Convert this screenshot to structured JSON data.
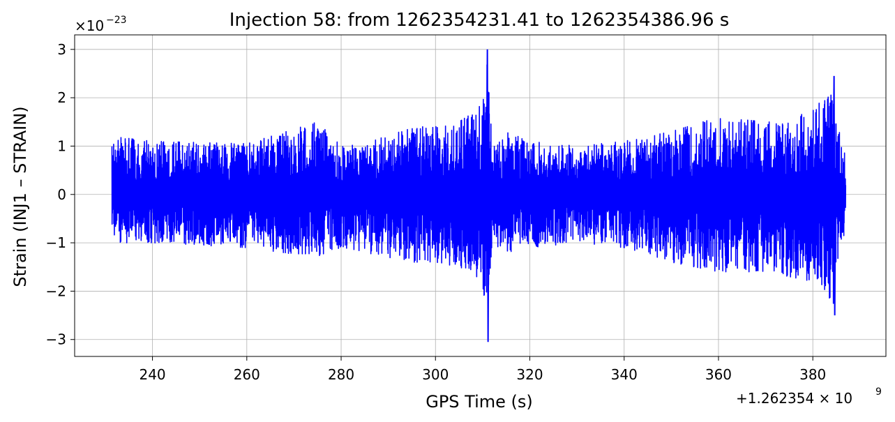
{
  "chart_data": {
    "type": "line",
    "title": "Injection 58: from 1262354231.41 to 1262354386.96 s",
    "xlabel": "GPS Time (s)",
    "ylabel": "Strain (INJ1 – STRAIN)",
    "x_offset_label": "+1.262354 × 10",
    "x_offset_exp": "9",
    "y_scale_label": "×10",
    "y_scale_exp": "−23",
    "xlim": [
      223.5,
      395.5
    ],
    "ylim": [
      -3.35,
      3.3
    ],
    "x_ticks": [
      240,
      260,
      280,
      300,
      320,
      340,
      360,
      380
    ],
    "x_tick_labels": [
      "240",
      "260",
      "280",
      "300",
      "320",
      "340",
      "360",
      "380"
    ],
    "y_ticks": [
      -3,
      -2,
      -1,
      0,
      1,
      2,
      3
    ],
    "y_tick_labels": [
      "−3",
      "−2",
      "−1",
      "0",
      "1",
      "2",
      "3"
    ],
    "grid": true,
    "color": "#0000ff",
    "series": [
      {
        "x_start": 231.41,
        "x_end": 386.96,
        "envelope_x": [
          231.41,
          240,
          260,
          275,
          280,
          290,
          295,
          300,
          305,
          308,
          310,
          311,
          312,
          315,
          320,
          330,
          340,
          350,
          360,
          370,
          375,
          380,
          383,
          384.5,
          385,
          386,
          386.96
        ],
        "envelope_upper": [
          1.2,
          1.1,
          1.05,
          1.5,
          1.0,
          1.2,
          1.4,
          1.4,
          1.5,
          1.7,
          1.9,
          3.0,
          1.0,
          1.3,
          1.1,
          1.0,
          1.1,
          1.3,
          1.6,
          1.5,
          1.5,
          1.8,
          2.1,
          2.45,
          1.7,
          1.1,
          0.8
        ],
        "envelope_lower": [
          -1.0,
          -1.0,
          -1.1,
          -1.3,
          -1.1,
          -1.3,
          -1.4,
          -1.4,
          -1.5,
          -1.7,
          -1.9,
          -3.05,
          -1.0,
          -1.2,
          -1.1,
          -1.0,
          -1.1,
          -1.4,
          -1.6,
          -1.6,
          -1.7,
          -1.8,
          -2.0,
          -2.5,
          -1.7,
          -1.0,
          -0.75
        ]
      }
    ]
  }
}
